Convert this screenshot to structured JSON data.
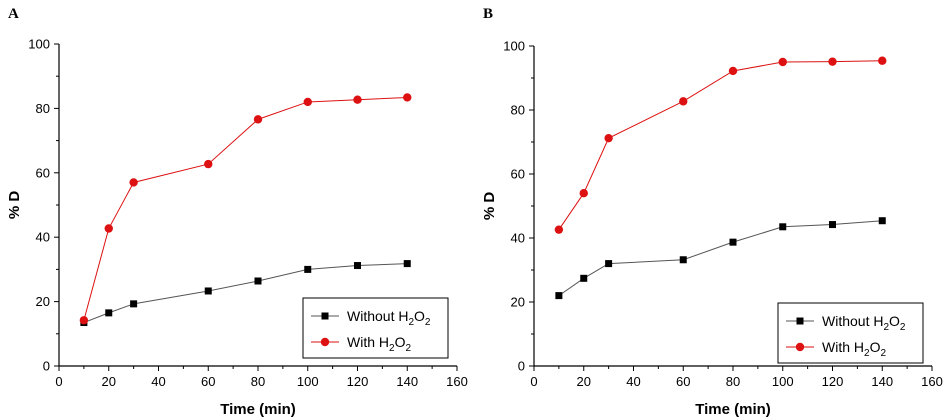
{
  "colors": {
    "without": "#000000",
    "with": "#dd1111",
    "axis": "#000000",
    "line": "#555555"
  },
  "chart_data": [
    {
      "panel": "A",
      "type": "line",
      "xlabel": "Time (min)",
      "ylabel": "% D",
      "xlim": [
        0,
        160
      ],
      "ylim": [
        0,
        100
      ],
      "xticks": [
        0,
        20,
        40,
        60,
        80,
        100,
        120,
        140,
        160
      ],
      "yticks": [
        0,
        20,
        40,
        60,
        80,
        100
      ],
      "grid": false,
      "legend_position": "bottom-right",
      "series": [
        {
          "name": "Without H2O2",
          "legend_text": "Without H",
          "legend_sub1": "2",
          "legend_mid": "O",
          "legend_sub2": "2",
          "marker": "square",
          "x": [
            10,
            20,
            30,
            60,
            80,
            100,
            120,
            140
          ],
          "y": [
            13.5,
            16.5,
            19.3,
            23.3,
            26.4,
            30.0,
            31.2,
            31.8
          ]
        },
        {
          "name": "With H2O2",
          "legend_text": "With H",
          "legend_sub1": "2",
          "legend_mid": "O",
          "legend_sub2": "2",
          "marker": "circle",
          "x": [
            10,
            20,
            30,
            60,
            80,
            100,
            120,
            140
          ],
          "y": [
            14.2,
            42.7,
            57.0,
            62.7,
            76.6,
            82.0,
            82.7,
            83.4
          ]
        }
      ]
    },
    {
      "panel": "B",
      "type": "line",
      "xlabel": "Time (min)",
      "ylabel": "% D",
      "xlim": [
        0,
        160
      ],
      "ylim": [
        0,
        100
      ],
      "xticks": [
        0,
        20,
        40,
        60,
        80,
        100,
        120,
        140,
        160
      ],
      "yticks": [
        0,
        20,
        40,
        60,
        80,
        100
      ],
      "grid": false,
      "legend_position": "bottom-right",
      "series": [
        {
          "name": "Without H2O2",
          "legend_text": "Without H",
          "legend_sub1": "2",
          "legend_mid": "O",
          "legend_sub2": "2",
          "marker": "square",
          "x": [
            10,
            20,
            30,
            60,
            80,
            100,
            120,
            140
          ],
          "y": [
            22.0,
            27.4,
            32.0,
            33.2,
            38.7,
            43.5,
            44.2,
            45.4
          ]
        },
        {
          "name": "With H2O2",
          "legend_text": "With H",
          "legend_sub1": "2",
          "legend_mid": "O",
          "legend_sub2": "2",
          "marker": "circle",
          "x": [
            10,
            20,
            30,
            60,
            80,
            100,
            120,
            140
          ],
          "y": [
            42.6,
            54.0,
            71.2,
            82.7,
            92.2,
            95.0,
            95.1,
            95.4
          ]
        }
      ]
    }
  ]
}
